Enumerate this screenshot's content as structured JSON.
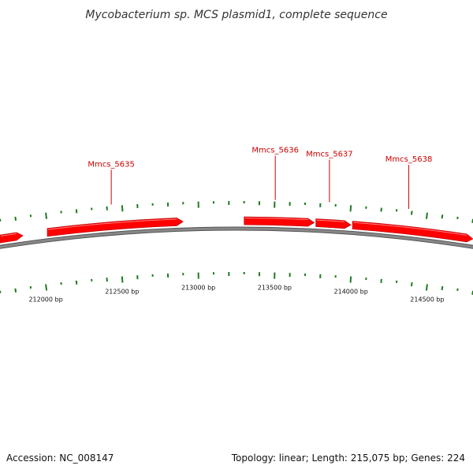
{
  "title": "Mycobacterium sp. MCS plasmid1, complete sequence",
  "footer": {
    "accession": "Accession: NC_008147",
    "summary": "Topology: linear; Length: 215,075 bp; Genes: 224"
  },
  "colors": {
    "gene": "#ff0000",
    "gene_label": "#cc0000",
    "tick": "#1f7a1f",
    "backbone": "#888888"
  },
  "view": {
    "start_bp": 211700,
    "end_bp": 214800
  },
  "scale_labels": [
    {
      "bp": 212000,
      "text": "212000 bp"
    },
    {
      "bp": 212500,
      "text": "212500 bp"
    },
    {
      "bp": 213000,
      "text": "213000 bp"
    },
    {
      "bp": 213500,
      "text": "213500 bp"
    },
    {
      "bp": 214000,
      "text": "214000 bp"
    },
    {
      "bp": 214500,
      "text": "214500 bp"
    }
  ],
  "genes": [
    {
      "start": 211700,
      "end": 211850,
      "strand": "+"
    },
    {
      "start": 212010,
      "end": 212900,
      "strand": "+",
      "label": "Mmcs_5635"
    },
    {
      "start": 213300,
      "end": 213760,
      "strand": "+",
      "label": "Mmcs_5636"
    },
    {
      "start": 213770,
      "end": 214000,
      "strand": "+",
      "label": "Mmcs_5637"
    },
    {
      "start": 214010,
      "end": 214800,
      "strand": "+",
      "label": "Mmcs_5638"
    }
  ]
}
